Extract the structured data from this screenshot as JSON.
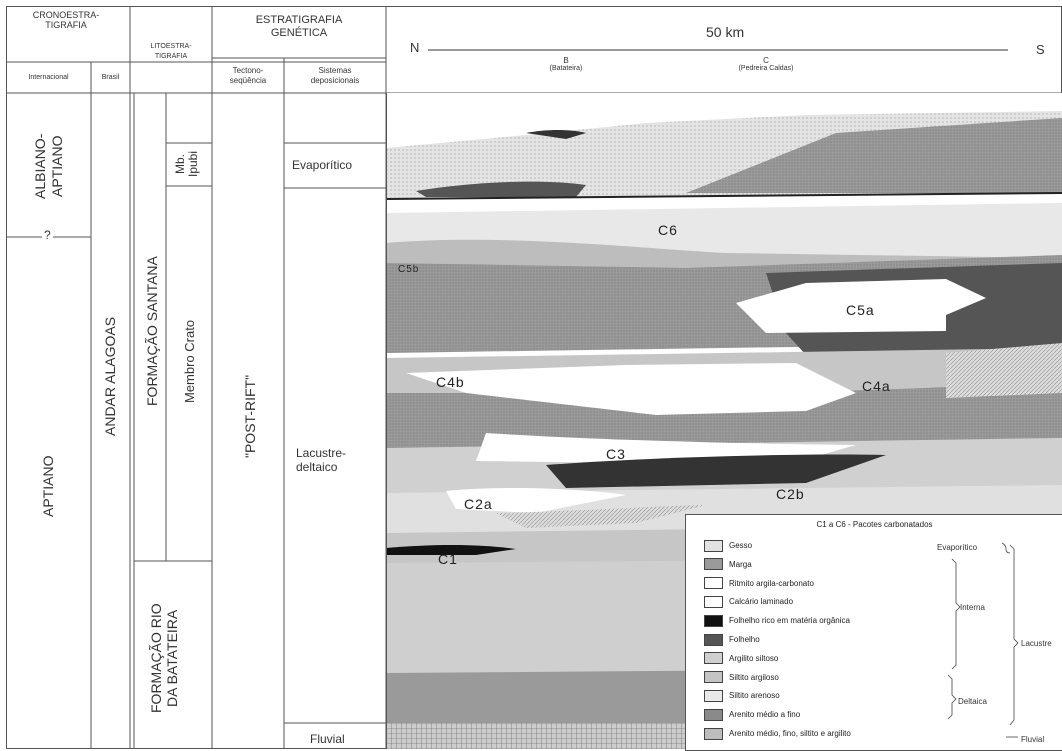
{
  "columns": {
    "crono_title": "CRONOESTRA-\nTIGRAFIA",
    "crono_int": "Internacional",
    "crono_br": "Brasil",
    "lito_title": "LITOESTRA-\nTIGRAFIA",
    "estrat_title": "ESTRATIGRAFIA\nGENÉTICA",
    "tecto": "Tectono-\nseqüência",
    "sistemas": "Sistemas\ndeposicionais"
  },
  "stages": {
    "albiano": "ALBIANO-\nAPTIANO",
    "q": "?",
    "aptiano": "APTIANO",
    "andar": "ANDAR ALAGOAS",
    "santana": "FORMAÇÃO SANTANA",
    "ipubi": "Mb.\nIpubi",
    "crato": "Membro Crato",
    "batateira": "FORMAÇÃO RIO\nDA BATATEIRA",
    "postrift": "\"POST-RIFT\"",
    "evaporitico": "Evaporítico",
    "lacustre": "Lacustre-\ndeltaico",
    "fluvial": "Fluvial"
  },
  "section": {
    "n": "N",
    "s": "S",
    "scale": "50 km",
    "well_b": "B",
    "well_b_name": "(Batateira)",
    "well_c": "C",
    "well_c_name": "(Pedreira Caldas)"
  },
  "packages": [
    "C6",
    "C5b",
    "C5a",
    "C4b",
    "C4a",
    "C3",
    "C2a",
    "C2b",
    "C1"
  ],
  "legend": {
    "title": "C1 a C6 - Pacotes carbonatados",
    "items": [
      {
        "label": "Gesso",
        "color": "#e2e2e2"
      },
      {
        "label": "Marga",
        "color": "#9a9a9a"
      },
      {
        "label": "Ritmito argila-carbonato",
        "color": "#ffffff"
      },
      {
        "label": "Calcário laminado",
        "color": "#ffffff"
      },
      {
        "label": "Folhelho rico em matéria orgânica",
        "color": "#111111"
      },
      {
        "label": "Folhelho",
        "color": "#555555"
      },
      {
        "label": "Argilito siltoso",
        "color": "#cfcfcf"
      },
      {
        "label": "Siltito argiloso",
        "color": "#c4c4c4"
      },
      {
        "label": "Siltito arenoso",
        "color": "#e9e9e9"
      },
      {
        "label": "Arenito médio a fino",
        "color": "#8a8a8a"
      },
      {
        "label": "Arenito médio, fino, siltito e argilito",
        "color": "#bdbdbd"
      }
    ],
    "groups": {
      "evaporitico": "Evaporítico",
      "interna": "Interna",
      "deltaica": "Deltaica",
      "lacustre": "Lacustre",
      "fluvial": "Fluvial"
    }
  }
}
